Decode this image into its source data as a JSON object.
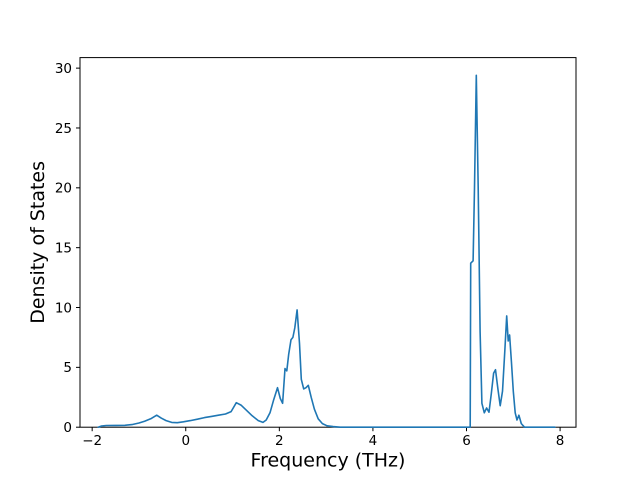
{
  "chart_data": {
    "type": "line",
    "xlabel": "Frequency (THz)",
    "ylabel": "Density of States",
    "xlim": [
      -2.26,
      8.34
    ],
    "ylim": [
      0,
      30.88
    ],
    "xticks": {
      "values": [
        -2,
        0,
        2,
        4,
        6,
        8
      ],
      "labels": [
        "−2",
        "0",
        "2",
        "4",
        "6",
        "8"
      ]
    },
    "yticks": {
      "values": [
        0,
        5,
        10,
        15,
        20,
        25,
        30
      ],
      "labels": [
        "0",
        "5",
        "10",
        "15",
        "20",
        "25",
        "30"
      ]
    },
    "grid": false,
    "legend": "none",
    "line_color": "#1f77b4",
    "background": "#ffffff",
    "axis_color": "#000000",
    "series": [
      {
        "name": "density-of-states",
        "x": [
          -1.87,
          -1.8,
          -1.7,
          -1.5,
          -1.3,
          -1.15,
          -1.0,
          -0.88,
          -0.75,
          -0.62,
          -0.52,
          -0.42,
          -0.3,
          -0.18,
          -0.05,
          0.1,
          0.25,
          0.4,
          0.55,
          0.7,
          0.85,
          0.97,
          1.08,
          1.18,
          1.3,
          1.42,
          1.55,
          1.65,
          1.72,
          1.8,
          1.88,
          1.96,
          2.02,
          2.07,
          2.12,
          2.16,
          2.2,
          2.25,
          2.29,
          2.33,
          2.38,
          2.43,
          2.47,
          2.52,
          2.57,
          2.62,
          2.68,
          2.75,
          2.83,
          2.92,
          3.02,
          3.15,
          3.3,
          3.6,
          4.0,
          4.5,
          5.0,
          5.5,
          5.9,
          6.05,
          6.08,
          6.09,
          6.14,
          6.17,
          6.21,
          6.25,
          6.29,
          6.33,
          6.38,
          6.43,
          6.48,
          6.53,
          6.58,
          6.62,
          6.67,
          6.72,
          6.77,
          6.82,
          6.86,
          6.89,
          6.92,
          6.96,
          7.0,
          7.04,
          7.08,
          7.12,
          7.17,
          7.24,
          7.4,
          7.6,
          7.89
        ],
        "y": [
          0.0,
          0.1,
          0.14,
          0.15,
          0.16,
          0.22,
          0.35,
          0.5,
          0.7,
          1.0,
          0.75,
          0.55,
          0.4,
          0.38,
          0.45,
          0.55,
          0.67,
          0.8,
          0.9,
          1.0,
          1.1,
          1.3,
          2.05,
          1.85,
          1.4,
          0.95,
          0.55,
          0.4,
          0.6,
          1.2,
          2.3,
          3.3,
          2.4,
          2.0,
          4.9,
          4.7,
          6.1,
          7.3,
          7.5,
          8.3,
          9.8,
          7.0,
          4.0,
          3.2,
          3.3,
          3.5,
          2.5,
          1.5,
          0.7,
          0.3,
          0.12,
          0.05,
          0.0,
          0.0,
          0.0,
          0.0,
          0.0,
          0.0,
          0.0,
          0.0,
          0.0,
          13.7,
          13.9,
          20.0,
          29.4,
          20.0,
          8.0,
          2.0,
          1.2,
          1.6,
          1.25,
          2.8,
          4.5,
          4.8,
          3.2,
          1.8,
          3.0,
          6.5,
          9.3,
          7.2,
          7.7,
          5.5,
          3.0,
          1.2,
          0.6,
          1.0,
          0.3,
          0.0,
          0.0,
          0.0,
          0.0
        ]
      }
    ]
  }
}
